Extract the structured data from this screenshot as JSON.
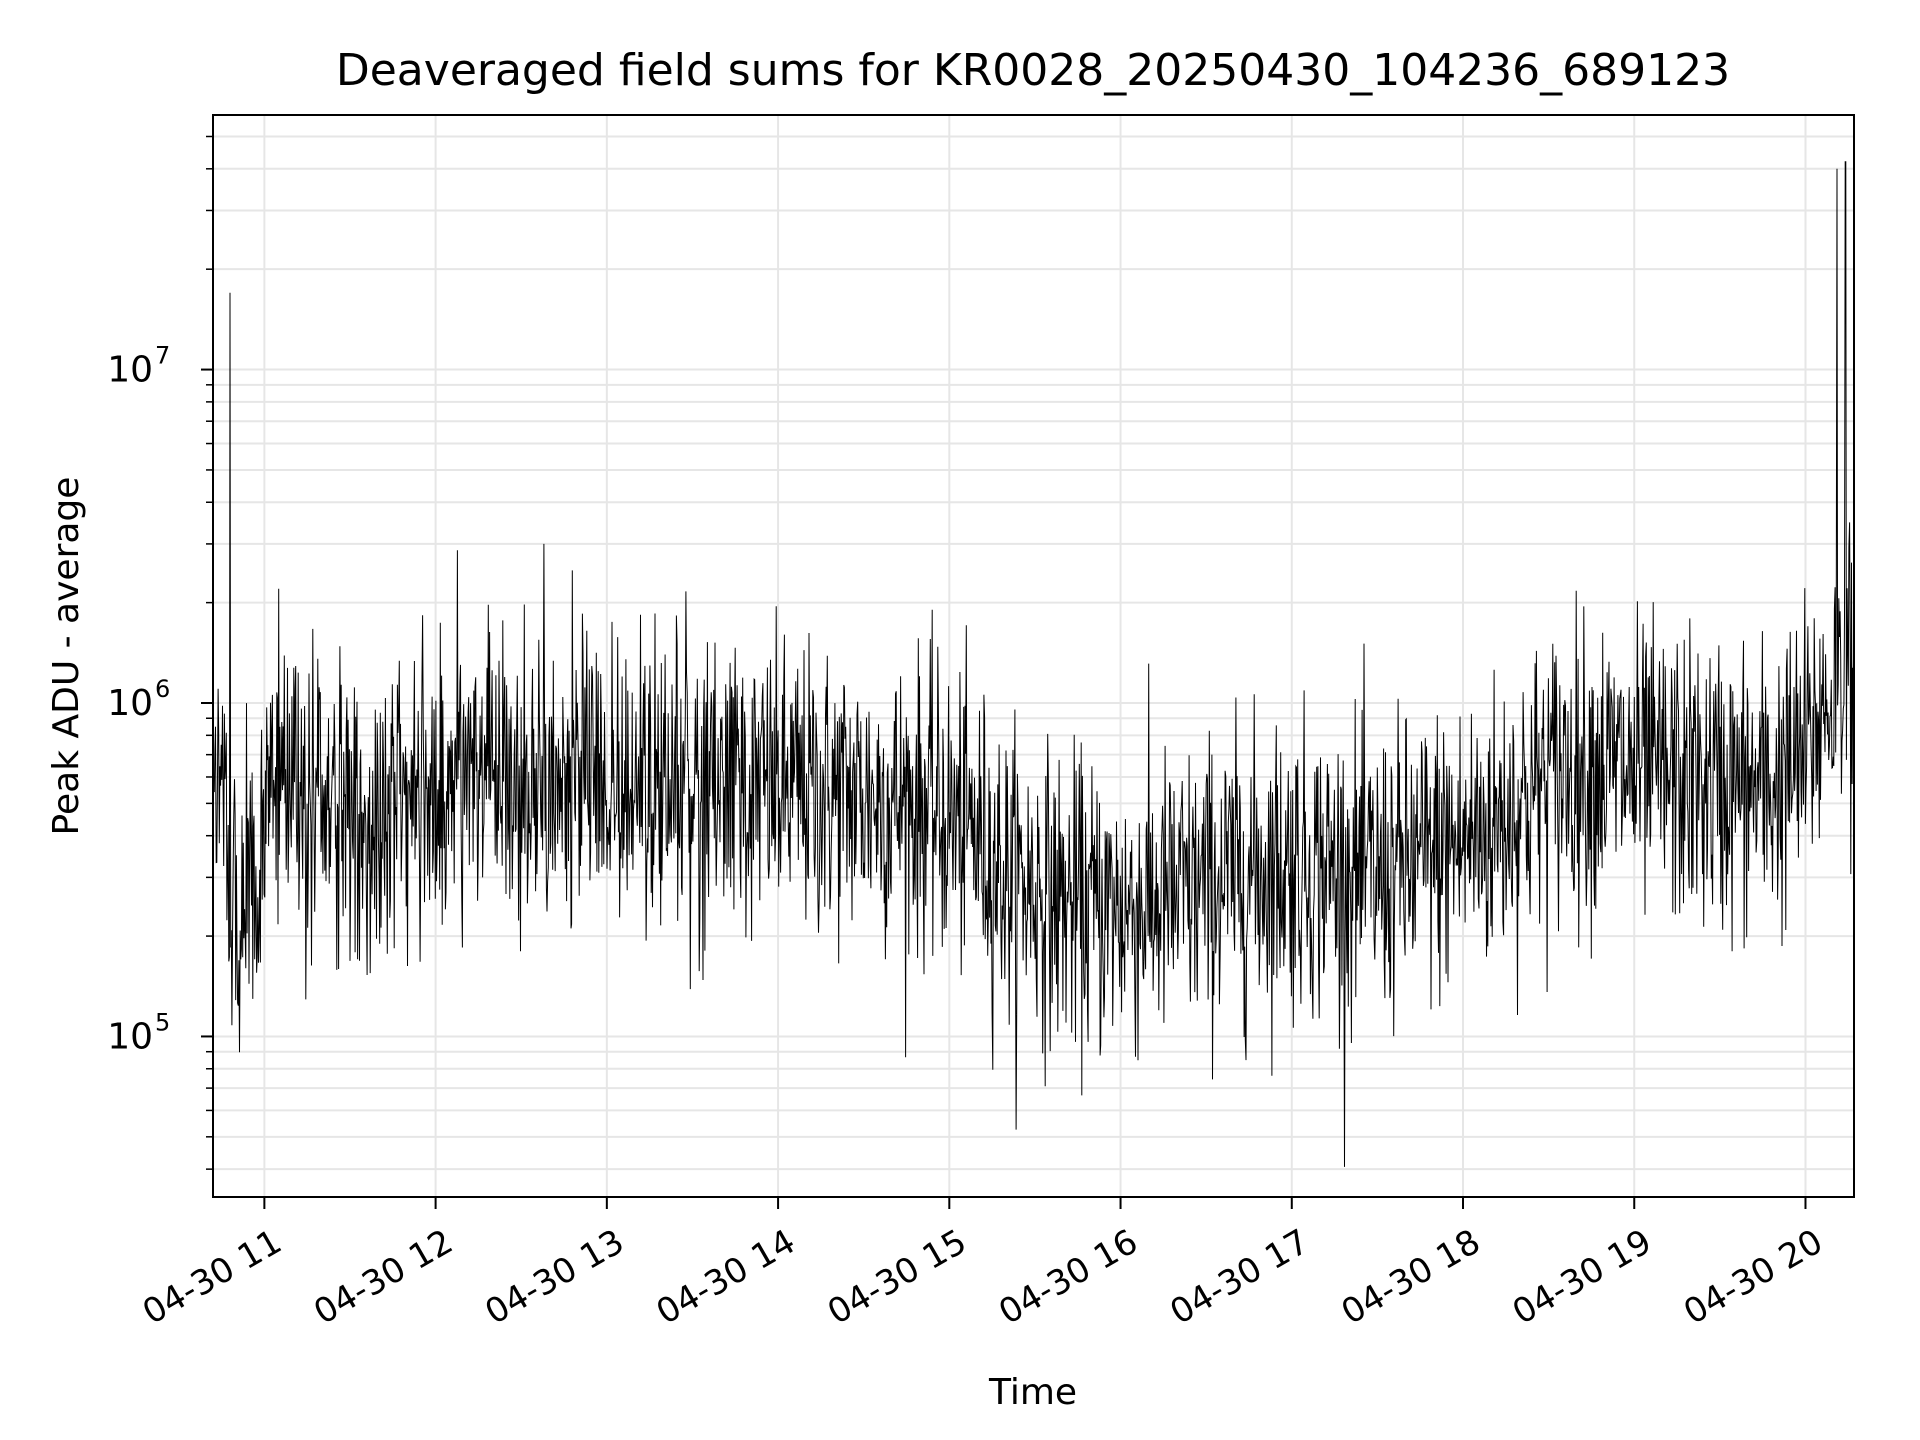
{
  "chart_data": {
    "type": "line",
    "title": "Deaveraged field sums for KR0028_20250430_104236_689123",
    "xlabel": "Time",
    "ylabel": "Peak ADU - average",
    "yscale": "log",
    "ylim": [
      33000,
      58000000
    ],
    "xlim": [
      "2025-04-30 10:42",
      "2025-04-30 20:17"
    ],
    "x_tick_labels": [
      "04-30 11",
      "04-30 12",
      "04-30 13",
      "04-30 14",
      "04-30 15",
      "04-30 16",
      "04-30 17",
      "04-30 18",
      "04-30 19",
      "04-30 20"
    ],
    "x_tick_values": [
      "2025-04-30 11:00",
      "2025-04-30 12:00",
      "2025-04-30 13:00",
      "2025-04-30 14:00",
      "2025-04-30 15:00",
      "2025-04-30 16:00",
      "2025-04-30 17:00",
      "2025-04-30 18:00",
      "2025-04-30 19:00",
      "2025-04-30 20:00"
    ],
    "y_ticks": [
      {
        "base": "10",
        "exp": "5",
        "value": 100000
      },
      {
        "base": "10",
        "exp": "6",
        "value": 1000000
      },
      {
        "base": "10",
        "exp": "7",
        "value": 10000000
      }
    ],
    "grid": true,
    "series_color": "#000000",
    "series": [
      {
        "x": [
          "10:42",
          "10:45",
          "10:48",
          "10:51",
          "10:54",
          "10:57",
          "11:00",
          "11:05",
          "11:10",
          "11:15",
          "11:20",
          "11:25",
          "11:30",
          "11:35",
          "11:40",
          "11:45",
          "11:50",
          "11:55",
          "12:00",
          "12:10",
          "12:20",
          "12:30",
          "12:40",
          "12:50",
          "13:00",
          "13:10",
          "13:20",
          "13:30",
          "13:40",
          "13:50",
          "14:00",
          "14:10",
          "14:20",
          "14:30",
          "14:40",
          "14:50",
          "15:00",
          "15:10",
          "15:20",
          "15:30",
          "15:40",
          "15:50",
          "16:00",
          "16:10",
          "16:20",
          "16:30",
          "16:40",
          "16:50",
          "17:00",
          "17:10",
          "17:20",
          "17:30",
          "17:40",
          "17:50",
          "18:00",
          "18:10",
          "18:20",
          "18:30",
          "18:40",
          "18:50",
          "19:00",
          "19:10",
          "19:20",
          "19:30",
          "19:40",
          "19:50",
          "20:00",
          "20:05",
          "20:10",
          "20:15",
          "20:17"
        ],
        "y": [
          450000,
          800000,
          300000,
          250000,
          280000,
          230000,
          350000,
          600000,
          650000,
          550000,
          500000,
          520000,
          480000,
          450000,
          500000,
          550000,
          520000,
          600000,
          580000,
          620000,
          600000,
          580000,
          560000,
          620000,
          600000,
          590000,
          580000,
          570000,
          560000,
          550000,
          550000,
          540000,
          530000,
          520000,
          510000,
          500000,
          450000,
          400000,
          300000,
          280000,
          250000,
          240000,
          240000,
          250000,
          260000,
          280000,
          300000,
          320000,
          330000,
          320000,
          310000,
          300000,
          320000,
          350000,
          380000,
          420000,
          500000,
          600000,
          650000,
          640000,
          620000,
          600000,
          580000,
          560000,
          550000,
          560000,
          700000,
          900000,
          1100000,
          1300000,
          1000000
        ]
      }
    ],
    "annotations_peaks": [
      {
        "x": "10:48",
        "y": 17000000
      },
      {
        "x": "12:38",
        "y": 3000000
      },
      {
        "x": "20:11",
        "y": 40000000
      },
      {
        "x": "20:14",
        "y": 42000000
      }
    ]
  }
}
